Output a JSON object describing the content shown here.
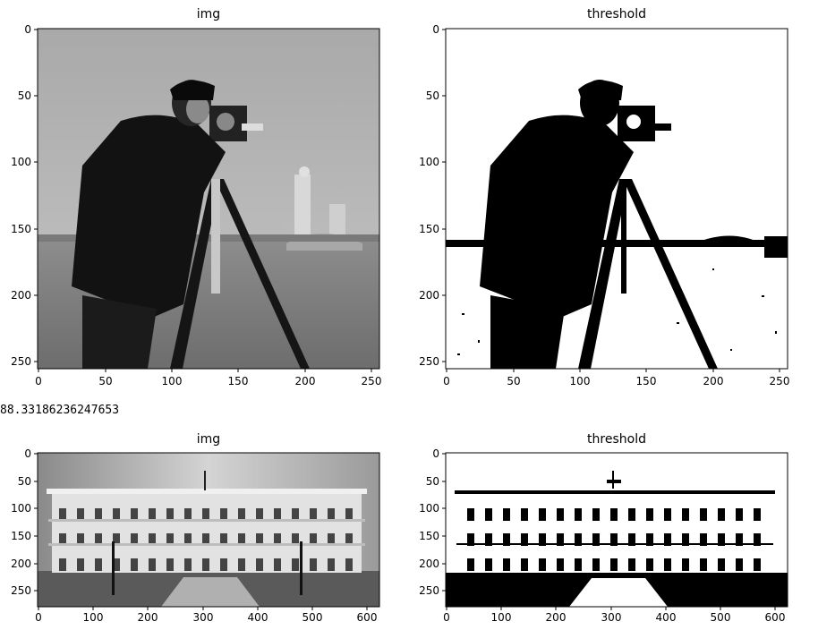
{
  "notebook": {
    "printed_value": "88.33186236247653",
    "plots": [
      {
        "id": "cameraman-original",
        "title": "img",
        "xticks": [
          "0",
          "50",
          "100",
          "150",
          "200",
          "250"
        ],
        "yticks": [
          "0",
          "50",
          "100",
          "150",
          "200",
          "250"
        ],
        "content": "grayscale photo of a cameraman with tripod"
      },
      {
        "id": "cameraman-threshold",
        "title": "threshold",
        "xticks": [
          "0",
          "50",
          "100",
          "150",
          "200",
          "250"
        ],
        "yticks": [
          "0",
          "50",
          "100",
          "150",
          "200",
          "250"
        ],
        "content": "binary thresholded image of the cameraman"
      },
      {
        "id": "building-original",
        "title": "img",
        "xticks": [
          "0",
          "100",
          "200",
          "300",
          "400",
          "500",
          "600"
        ],
        "yticks": [
          "0",
          "50",
          "100",
          "150",
          "200",
          "250"
        ],
        "content": "grayscale photo of a large building"
      },
      {
        "id": "building-threshold",
        "title": "threshold",
        "xticks": [
          "0",
          "100",
          "200",
          "300",
          "400",
          "500",
          "600"
        ],
        "yticks": [
          "0",
          "50",
          "100",
          "150",
          "200",
          "250"
        ],
        "content": "binary thresholded image of the building"
      }
    ]
  }
}
